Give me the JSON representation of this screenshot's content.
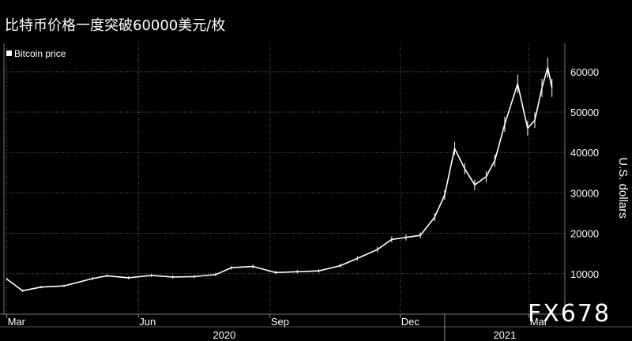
{
  "title": "比特币价格一度突破60000美元/枚",
  "watermark": "FX678",
  "chart_data": {
    "type": "line",
    "title": "比特币价格一度突破60000美元/枚",
    "legend": {
      "entries": [
        "Bitcoin price"
      ],
      "placement": "top-left"
    },
    "xlabel": "",
    "ylabel": "U.S. dollars",
    "x_tick_labels": [
      "Mar",
      "Jun",
      "Sep",
      "Dec",
      "Mar"
    ],
    "x_year_labels": [
      "2020",
      "2021"
    ],
    "y_ticks": [
      10000,
      20000,
      30000,
      40000,
      50000,
      60000
    ],
    "y_tick_labels": [
      "10000",
      "20000",
      "30000",
      "40000",
      "50000",
      "60000"
    ],
    "ylim": [
      0,
      67000
    ],
    "grid": true,
    "series": [
      {
        "name": "Bitcoin price",
        "x": [
          "2020-03-01",
          "2020-03-12",
          "2020-03-25",
          "2020-04-10",
          "2020-04-30",
          "2020-05-10",
          "2020-05-25",
          "2020-06-10",
          "2020-06-25",
          "2020-07-10",
          "2020-07-25",
          "2020-08-05",
          "2020-08-20",
          "2020-09-05",
          "2020-09-20",
          "2020-10-05",
          "2020-10-20",
          "2020-11-01",
          "2020-11-15",
          "2020-11-25",
          "2020-12-05",
          "2020-12-15",
          "2020-12-25",
          "2021-01-01",
          "2021-01-08",
          "2021-01-15",
          "2021-01-22",
          "2021-01-30",
          "2021-02-05",
          "2021-02-12",
          "2021-02-21",
          "2021-02-28",
          "2021-03-05",
          "2021-03-10",
          "2021-03-14",
          "2021-03-17"
        ],
        "values": [
          8700,
          5800,
          6700,
          7000,
          8800,
          9500,
          9000,
          9600,
          9200,
          9300,
          9800,
          11500,
          11800,
          10300,
          10500,
          10700,
          12000,
          13800,
          16000,
          18500,
          19000,
          19500,
          24000,
          29500,
          41000,
          36000,
          32000,
          34000,
          38000,
          47000,
          57000,
          46000,
          48000,
          56000,
          61000,
          56000
        ]
      }
    ]
  }
}
